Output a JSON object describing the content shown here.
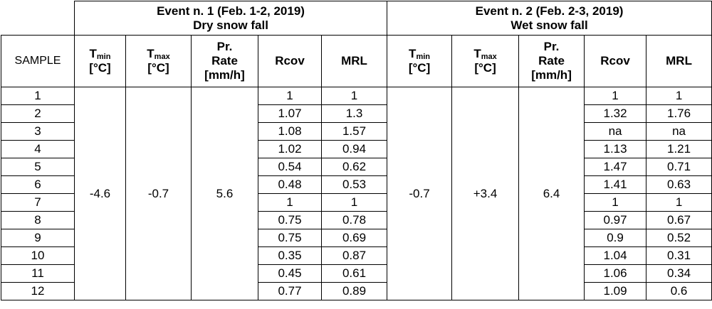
{
  "events": [
    {
      "title": "Event n. 1 (Feb. 1-2, 2019)",
      "subtitle": "Dry snow fall"
    },
    {
      "title": "Event n. 2 (Feb. 2-3, 2019)",
      "subtitle": "Wet snow fall"
    }
  ],
  "headers": {
    "sample": "SAMPLE",
    "tmin_main": "T",
    "tmin_sub": "min",
    "tmin_unit": "[°C]",
    "tmax_main": "T",
    "tmax_sub": "max",
    "tmax_unit": "[°C]",
    "pr_1": "Pr.",
    "pr_2": "Rate",
    "pr_3": "[mm/h]",
    "rcov": "Rcov",
    "mrl": "MRL"
  },
  "event1": {
    "tmin": "-4.6",
    "tmax": "-0.7",
    "pr_rate": "5.6"
  },
  "event2": {
    "tmin": "-0.7",
    "tmax": "+3.4",
    "pr_rate": "6.4"
  },
  "rows": [
    {
      "sample": "1",
      "rcov1": "1",
      "mrl1": "1",
      "rcov2": "1",
      "mrl2": "1"
    },
    {
      "sample": "2",
      "rcov1": "1.07",
      "mrl1": "1.3",
      "rcov2": "1.32",
      "mrl2": "1.76"
    },
    {
      "sample": "3",
      "rcov1": "1.08",
      "mrl1": "1.57",
      "rcov2": "na",
      "mrl2": "na"
    },
    {
      "sample": "4",
      "rcov1": "1.02",
      "mrl1": "0.94",
      "rcov2": "1.13",
      "mrl2": "1.21"
    },
    {
      "sample": "5",
      "rcov1": "0.54",
      "mrl1": "0.62",
      "rcov2": "1.47",
      "mrl2": "0.71"
    },
    {
      "sample": "6",
      "rcov1": "0.48",
      "mrl1": "0.53",
      "rcov2": "1.41",
      "mrl2": "0.63"
    },
    {
      "sample": "7",
      "rcov1": "1",
      "mrl1": "1",
      "rcov2": "1",
      "mrl2": "1"
    },
    {
      "sample": "8",
      "rcov1": "0.75",
      "mrl1": "0.78",
      "rcov2": "0.97",
      "mrl2": "0.67"
    },
    {
      "sample": "9",
      "rcov1": "0.75",
      "mrl1": "0.69",
      "rcov2": "0.9",
      "mrl2": "0.52"
    },
    {
      "sample": "10",
      "rcov1": "0.35",
      "mrl1": "0.87",
      "rcov2": "1.04",
      "mrl2": "0.31"
    },
    {
      "sample": "11",
      "rcov1": "0.45",
      "mrl1": "0.61",
      "rcov2": "1.06",
      "mrl2": "0.34"
    },
    {
      "sample": "12",
      "rcov1": "0.77",
      "mrl1": "0.89",
      "rcov2": "1.09",
      "mrl2": "0.6"
    }
  ]
}
